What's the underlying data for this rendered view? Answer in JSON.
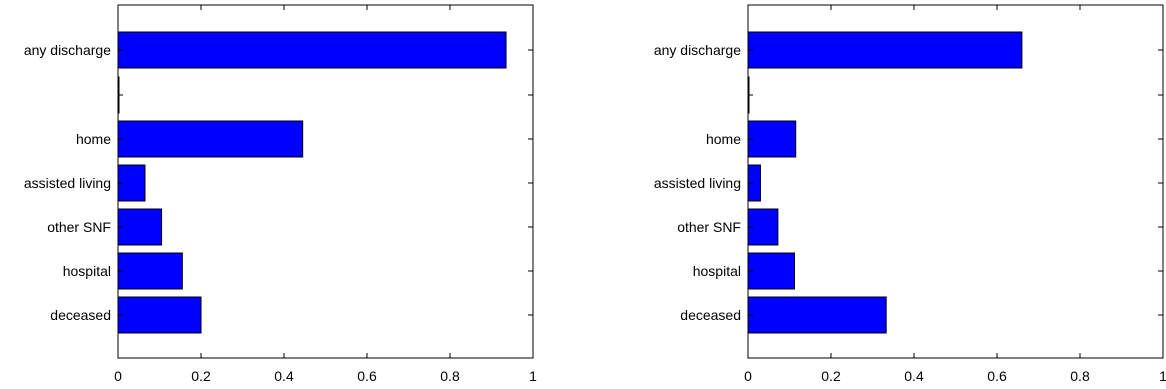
{
  "chart_data": [
    {
      "type": "bar",
      "orientation": "horizontal",
      "categories": [
        "any discharge",
        "",
        "home",
        "assisted living",
        "other SNF",
        "hospital",
        "deceased"
      ],
      "values": [
        0.935,
        0.0,
        0.445,
        0.065,
        0.105,
        0.155,
        0.2
      ],
      "xlim": [
        0,
        1
      ],
      "xticks": [
        0,
        0.2,
        0.4,
        0.6,
        0.8,
        1
      ],
      "xtick_labels": [
        "0",
        "0.2",
        "0.4",
        "0.6",
        "0.8",
        "1"
      ],
      "bar_color": "#0000ff",
      "edge_color": "#000000",
      "grid": false,
      "title": "",
      "xlabel": "",
      "ylabel": ""
    },
    {
      "type": "bar",
      "orientation": "horizontal",
      "categories": [
        "any discharge",
        "",
        "home",
        "assisted living",
        "other SNF",
        "hospital",
        "deceased"
      ],
      "values": [
        0.66,
        0.0,
        0.115,
        0.03,
        0.072,
        0.112,
        0.333
      ],
      "xlim": [
        0,
        1
      ],
      "xticks": [
        0,
        0.2,
        0.4,
        0.6,
        0.8,
        1
      ],
      "xtick_labels": [
        "0",
        "0.2",
        "0.4",
        "0.6",
        "0.8",
        "1"
      ],
      "bar_color": "#0000ff",
      "edge_color": "#000000",
      "grid": false,
      "title": "",
      "xlabel": "",
      "ylabel": ""
    }
  ]
}
